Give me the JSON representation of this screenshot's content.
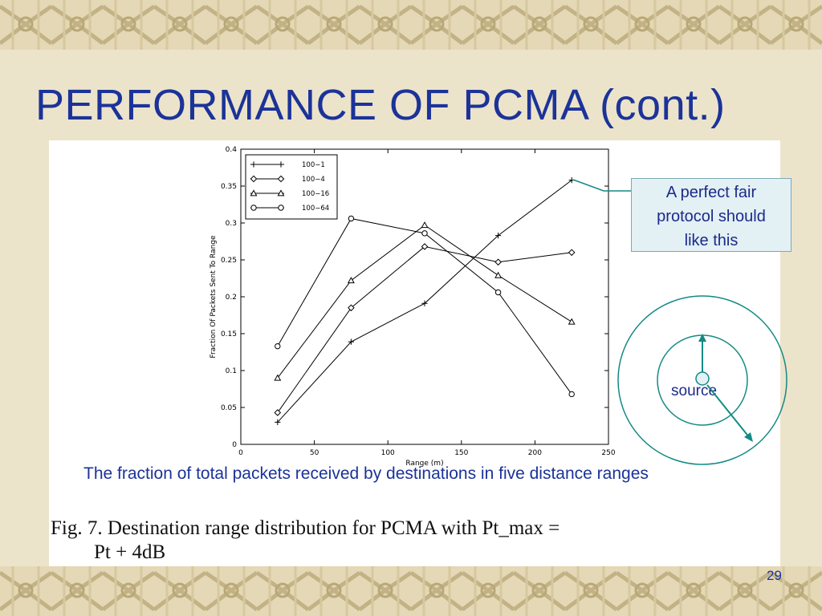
{
  "slide": {
    "title": "PERFORMANCE OF PCMA (cont.)",
    "callout": [
      "A perfect fair",
      "protocol should",
      "like this"
    ],
    "caption": "The fraction of total packets received by destinations in five distance ranges",
    "figure_caption_line1": "Fig. 7.   Destination range distribution for PCMA with Pt_max =",
    "figure_caption_line2": "Pt + 4dB",
    "source_label": "source",
    "page_number": "29",
    "colors": {
      "title": "#1b3399",
      "callout_bg": "#e3f0f4",
      "callout_border": "#7fa8b8",
      "annotation": "#138a84",
      "background": "#ece3cb",
      "border_pattern": "#c8b98d"
    }
  },
  "chart_data": {
    "type": "line",
    "xlabel": "Range (m)",
    "ylabel": "Fraction Of Packets Sent To Range",
    "xlim": [
      0,
      250
    ],
    "ylim": [
      0,
      0.4
    ],
    "xticks": [
      "0",
      "50",
      "100",
      "150",
      "200",
      "250"
    ],
    "yticks": [
      "0",
      "0.05",
      "0.1",
      "0.15",
      "0.2",
      "0.25",
      "0.3",
      "0.35",
      "0.4"
    ],
    "x": [
      25,
      75,
      125,
      175,
      225
    ],
    "legend_position": "top-left",
    "series": [
      {
        "name": "100−1",
        "marker": "plus",
        "values": [
          0.03,
          0.139,
          0.191,
          0.283,
          0.358
        ]
      },
      {
        "name": "100−4",
        "marker": "diamond",
        "values": [
          0.043,
          0.185,
          0.268,
          0.247,
          0.26
        ]
      },
      {
        "name": "100−16",
        "marker": "triangle",
        "values": [
          0.09,
          0.222,
          0.297,
          0.229,
          0.166
        ]
      },
      {
        "name": "100−64",
        "marker": "circle",
        "values": [
          0.133,
          0.306,
          0.286,
          0.206,
          0.068
        ]
      }
    ]
  }
}
